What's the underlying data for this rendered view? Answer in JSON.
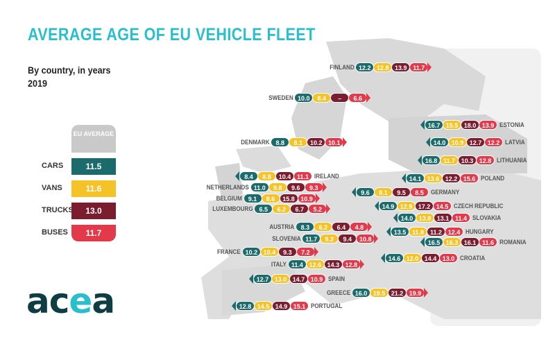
{
  "title": "AVERAGE AGE OF EU VEHICLE FLEET",
  "subtitle": "By country, in years",
  "year": "2019",
  "colors": {
    "cars": "#1c6b6c",
    "vans": "#f5c328",
    "trucks": "#7b1c2f",
    "buses": "#e2394b",
    "title": "#27bfcc",
    "eu_head": "#c9c9c9"
  },
  "legend": {
    "header": "EU AVERAGE",
    "items": [
      {
        "label": "CARS",
        "value": "11.5"
      },
      {
        "label": "VANS",
        "value": "11.6"
      },
      {
        "label": "TRUCKS",
        "value": "13.0"
      },
      {
        "label": "BUSES",
        "value": "11.7"
      }
    ]
  },
  "logo": "acea",
  "chart_data": {
    "type": "table",
    "columns": [
      "Cars",
      "Vans",
      "Trucks",
      "Buses"
    ],
    "unit": "years",
    "countries": [
      {
        "name": "FINLAND",
        "values": [
          "12.2",
          "12.8",
          "13.9",
          "11.7"
        ]
      },
      {
        "name": "SWEDEN",
        "values": [
          "10.0",
          "8.4",
          "–",
          "6.6"
        ]
      },
      {
        "name": "ESTONIA",
        "values": [
          "16.7",
          "15.5",
          "18.0",
          "13.9"
        ]
      },
      {
        "name": "DENMARK",
        "values": [
          "8.8",
          "8.1",
          "10.2",
          "10.1"
        ]
      },
      {
        "name": "LATVIA",
        "values": [
          "14.0",
          "10.9",
          "12.7",
          "12.2"
        ]
      },
      {
        "name": "LITHUANIA",
        "values": [
          "16.8",
          "11.7",
          "10.3",
          "12.8"
        ]
      },
      {
        "name": "IRELAND",
        "values": [
          "8.4",
          "8.8",
          "10.4",
          "11.1"
        ]
      },
      {
        "name": "POLAND",
        "values": [
          "14.1",
          "13.6",
          "12.2",
          "15.6"
        ]
      },
      {
        "name": "NETHERLANDS",
        "values": [
          "11.0",
          "9.8",
          "9.6",
          "9.3"
        ]
      },
      {
        "name": "GERMANY",
        "values": [
          "9.6",
          "8.1",
          "9.5",
          "8.5"
        ]
      },
      {
        "name": "BELGIUM",
        "values": [
          "9.1",
          "8.6",
          "15.8",
          "10.9"
        ]
      },
      {
        "name": "CZECH REPUBLIC",
        "values": [
          "14.9",
          "12.9",
          "17.2",
          "14.5"
        ]
      },
      {
        "name": "LUXEMBOURG",
        "values": [
          "6.5",
          "6.2",
          "6.7",
          "5.2"
        ]
      },
      {
        "name": "SLOVAKIA",
        "values": [
          "14.0",
          "13.8",
          "13.1",
          "11.4"
        ]
      },
      {
        "name": "AUSTRIA",
        "values": [
          "8.3",
          "6.2",
          "6.4",
          "4.8"
        ]
      },
      {
        "name": "HUNGARY",
        "values": [
          "13.5",
          "11.8",
          "11.2",
          "12.4"
        ]
      },
      {
        "name": "SLOVENIA",
        "values": [
          "11.7",
          "9.2",
          "9.4",
          "10.8"
        ]
      },
      {
        "name": "ROMANIA",
        "values": [
          "16.5",
          "16.3",
          "16.1",
          "11.6"
        ]
      },
      {
        "name": "FRANCE",
        "values": [
          "10.2",
          "10.4",
          "9.3",
          "7.2"
        ]
      },
      {
        "name": "CROATIA",
        "values": [
          "14.6",
          "12.0",
          "14.4",
          "13.0"
        ]
      },
      {
        "name": "ITALY",
        "values": [
          "11.4",
          "12.6",
          "14.3",
          "12.8"
        ]
      },
      {
        "name": "SPAIN",
        "values": [
          "12.7",
          "13.0",
          "14.7",
          "10.9"
        ]
      },
      {
        "name": "GREECE",
        "values": [
          "16.0",
          "19.5",
          "21.2",
          "19.9"
        ]
      },
      {
        "name": "PORTUGAL",
        "values": [
          "12.8",
          "14.5",
          "14.9",
          "15.1"
        ]
      }
    ]
  }
}
